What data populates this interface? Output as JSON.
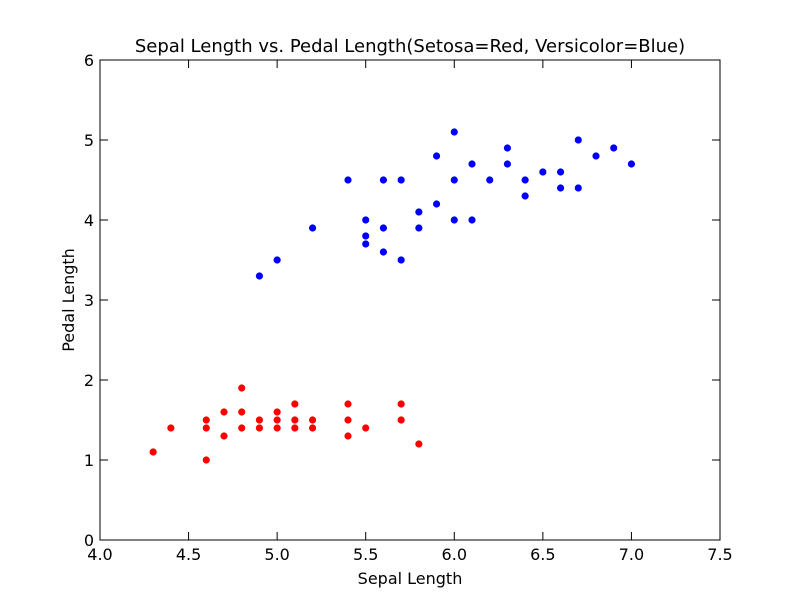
{
  "chart_data": {
    "type": "scatter",
    "title": "Sepal Length vs. Pedal Length(Setosa=Red, Versicolor=Blue)",
    "xlabel": "Sepal Length",
    "ylabel": "Pedal Length",
    "xlim": [
      4.0,
      7.5
    ],
    "ylim": [
      0,
      6
    ],
    "xticks": [
      "4.0",
      "4.5",
      "5.0",
      "5.5",
      "6.0",
      "6.5",
      "7.0",
      "7.5"
    ],
    "yticks": [
      "0",
      "1",
      "2",
      "3",
      "4",
      "5",
      "6"
    ],
    "grid": false,
    "series": [
      {
        "color": "#ff0000",
        "points": [
          [
            4.3,
            1.1
          ],
          [
            4.4,
            1.4
          ],
          [
            4.6,
            1.0
          ],
          [
            4.6,
            1.4
          ],
          [
            4.6,
            1.5
          ],
          [
            4.7,
            1.3
          ],
          [
            4.7,
            1.6
          ],
          [
            4.8,
            1.4
          ],
          [
            4.8,
            1.6
          ],
          [
            4.8,
            1.9
          ],
          [
            4.9,
            1.4
          ],
          [
            4.9,
            1.5
          ],
          [
            5.0,
            1.4
          ],
          [
            5.0,
            1.5
          ],
          [
            5.0,
            1.6
          ],
          [
            5.1,
            1.4
          ],
          [
            5.1,
            1.5
          ],
          [
            5.1,
            1.7
          ],
          [
            5.2,
            1.4
          ],
          [
            5.2,
            1.5
          ],
          [
            5.4,
            1.3
          ],
          [
            5.4,
            1.5
          ],
          [
            5.4,
            1.7
          ],
          [
            5.5,
            1.4
          ],
          [
            5.7,
            1.5
          ],
          [
            5.7,
            1.7
          ],
          [
            5.8,
            1.2
          ]
        ]
      },
      {
        "color": "#0000ff",
        "points": [
          [
            4.9,
            3.3
          ],
          [
            5.0,
            3.5
          ],
          [
            5.2,
            3.9
          ],
          [
            5.4,
            4.5
          ],
          [
            5.5,
            3.7
          ],
          [
            5.5,
            3.8
          ],
          [
            5.5,
            4.0
          ],
          [
            5.6,
            3.6
          ],
          [
            5.6,
            3.9
          ],
          [
            5.6,
            4.5
          ],
          [
            5.7,
            3.5
          ],
          [
            5.7,
            4.5
          ],
          [
            5.8,
            3.9
          ],
          [
            5.8,
            4.1
          ],
          [
            5.9,
            4.2
          ],
          [
            5.9,
            4.8
          ],
          [
            6.0,
            4.0
          ],
          [
            6.0,
            4.5
          ],
          [
            6.0,
            5.1
          ],
          [
            6.1,
            4.0
          ],
          [
            6.1,
            4.7
          ],
          [
            6.2,
            4.5
          ],
          [
            6.3,
            4.7
          ],
          [
            6.3,
            4.9
          ],
          [
            6.4,
            4.3
          ],
          [
            6.4,
            4.5
          ],
          [
            6.5,
            4.6
          ],
          [
            6.6,
            4.4
          ],
          [
            6.6,
            4.6
          ],
          [
            6.7,
            4.4
          ],
          [
            6.7,
            5.0
          ],
          [
            6.8,
            4.8
          ],
          [
            6.9,
            4.9
          ],
          [
            7.0,
            4.7
          ]
        ]
      }
    ]
  }
}
